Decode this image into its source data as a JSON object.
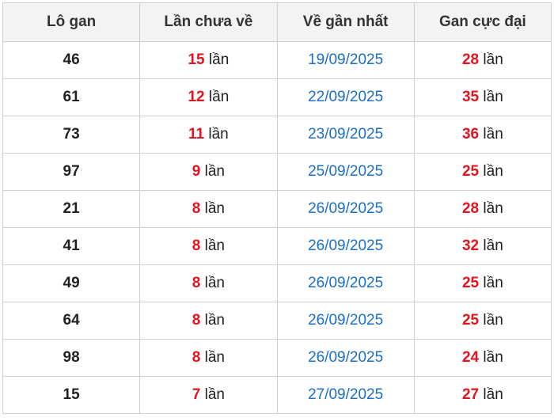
{
  "table": {
    "header": [
      "Lô gan",
      "Lần chưa về",
      "Về gần nhất",
      "Gan cực đại"
    ],
    "rows": [
      [
        46,
        15,
        "lần",
        "19/09/2025",
        28,
        "lần"
      ],
      [
        61,
        12,
        "lần",
        "22/09/2025",
        35,
        "lần"
      ],
      [
        73,
        11,
        "lần",
        "23/09/2025",
        36,
        "lần"
      ],
      [
        97,
        9,
        "lần",
        "25/09/2025",
        25,
        "lần"
      ],
      [
        21,
        8,
        "lần",
        "26/09/2025",
        28,
        "lần"
      ],
      [
        41,
        8,
        "lần",
        "26/09/2025",
        32,
        "lần"
      ],
      [
        49,
        8,
        "lần",
        "26/09/2025",
        25,
        "lần"
      ],
      [
        64,
        8,
        "lần",
        "26/09/2025",
        25,
        "lần"
      ],
      [
        98,
        8,
        "lần",
        "26/09/2025",
        24,
        "lần"
      ],
      [
        15,
        7,
        "lần",
        "27/09/2025",
        27,
        "lần"
      ]
    ]
  }
}
